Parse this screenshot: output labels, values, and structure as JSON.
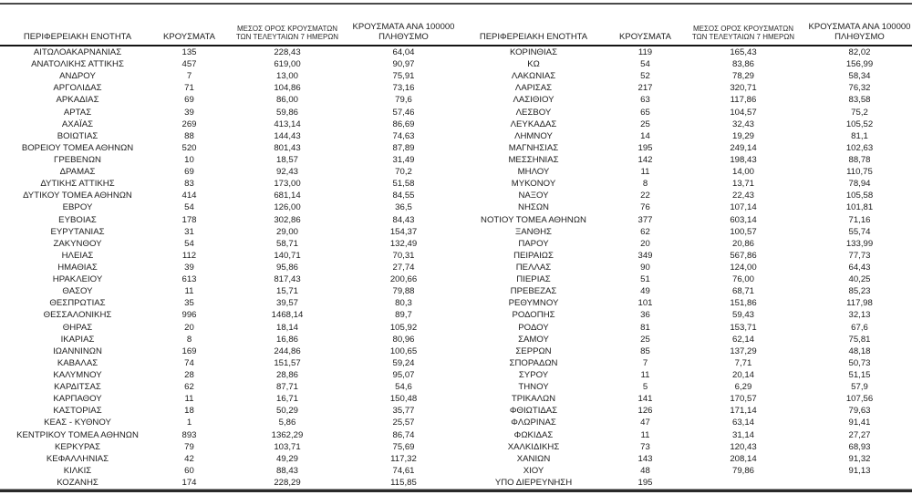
{
  "table": {
    "headers": [
      {
        "line1": "ΠΕΡΙΦΕΡΕΙΑΚΗ ΕΝΟΤΗΤΑ",
        "line2": ""
      },
      {
        "line1": "ΚΡΟΥΣΜΑΤΑ",
        "line2": ""
      },
      {
        "line1": "ΜΕΣΟΣ ΟΡΟΣ ΚΡΟΥΣΜΑΤΩΝ",
        "line2": "ΤΩΝ ΤΕΛΕΥΤΑΙΩΝ 7 ΗΜΕΡΩΝ"
      },
      {
        "line1": "ΚΡΟΥΣΜΑΤΑ ΑΝΑ 100000",
        "line2": "ΠΛΗΘΥΣΜΟ"
      }
    ],
    "left_rows": [
      [
        "ΑΙΤΩΛΟΑΚΑΡΝΑΝΙΑΣ",
        "135",
        "228,43",
        "64,04"
      ],
      [
        "ΑΝΑΤΟΛΙΚΗΣ ΑΤΤΙΚΗΣ",
        "457",
        "619,00",
        "90,97"
      ],
      [
        "ΑΝΔΡΟΥ",
        "7",
        "13,00",
        "75,91"
      ],
      [
        "ΑΡΓΟΛΙΔΑΣ",
        "71",
        "104,86",
        "73,16"
      ],
      [
        "ΑΡΚΑΔΙΑΣ",
        "69",
        "86,00",
        "79,6"
      ],
      [
        "ΑΡΤΑΣ",
        "39",
        "59,86",
        "57,46"
      ],
      [
        "ΑΧΑΪΑΣ",
        "269",
        "413,14",
        "86,69"
      ],
      [
        "ΒΟΙΩΤΙΑΣ",
        "88",
        "144,43",
        "74,63"
      ],
      [
        "ΒΟΡΕΙΟΥ ΤΟΜΕΑ ΑΘΗΝΩΝ",
        "520",
        "801,43",
        "87,89"
      ],
      [
        "ΓΡΕΒΕΝΩΝ",
        "10",
        "18,57",
        "31,49"
      ],
      [
        "ΔΡΑΜΑΣ",
        "69",
        "92,43",
        "70,2"
      ],
      [
        "ΔΥΤΙΚΗΣ ΑΤΤΙΚΗΣ",
        "83",
        "173,00",
        "51,58"
      ],
      [
        "ΔΥΤΙΚΟΥ ΤΟΜΕΑ ΑΘΗΝΩΝ",
        "414",
        "681,14",
        "84,55"
      ],
      [
        "ΕΒΡΟΥ",
        "54",
        "126,00",
        "36,5"
      ],
      [
        "ΕΥΒΟΙΑΣ",
        "178",
        "302,86",
        "84,43"
      ],
      [
        "ΕΥΡΥΤΑΝΙΑΣ",
        "31",
        "29,00",
        "154,37"
      ],
      [
        "ΖΑΚΥΝΘΟΥ",
        "54",
        "58,71",
        "132,49"
      ],
      [
        "ΗΛΕΙΑΣ",
        "112",
        "140,71",
        "70,31"
      ],
      [
        "ΗΜΑΘΙΑΣ",
        "39",
        "95,86",
        "27,74"
      ],
      [
        "ΗΡΑΚΛΕΙΟΥ",
        "613",
        "817,43",
        "200,66"
      ],
      [
        "ΘΑΣΟΥ",
        "11",
        "15,71",
        "79,88"
      ],
      [
        "ΘΕΣΠΡΩΤΙΑΣ",
        "35",
        "39,57",
        "80,3"
      ],
      [
        "ΘΕΣΣΑΛΟΝΙΚΗΣ",
        "996",
        "1468,14",
        "89,7"
      ],
      [
        "ΘΗΡΑΣ",
        "20",
        "18,14",
        "105,92"
      ],
      [
        "ΙΚΑΡΙΑΣ",
        "8",
        "16,86",
        "80,96"
      ],
      [
        "ΙΩΑΝΝΙΝΩΝ",
        "169",
        "244,86",
        "100,65"
      ],
      [
        "ΚΑΒΑΛΑΣ",
        "74",
        "151,57",
        "59,24"
      ],
      [
        "ΚΑΛΥΜΝΟΥ",
        "28",
        "28,86",
        "95,07"
      ],
      [
        "ΚΑΡΔΙΤΣΑΣ",
        "62",
        "87,71",
        "54,6"
      ],
      [
        "ΚΑΡΠΑΘΟΥ",
        "11",
        "16,71",
        "150,48"
      ],
      [
        "ΚΑΣΤΟΡΙΑΣ",
        "18",
        "50,29",
        "35,77"
      ],
      [
        "ΚΕΑΣ - ΚΥΘΝΟΥ",
        "1",
        "5,86",
        "25,57"
      ],
      [
        "ΚΕΝΤΡΙΚΟΥ ΤΟΜΕΑ ΑΘΗΝΩΝ",
        "893",
        "1362,29",
        "86,74"
      ],
      [
        "ΚΕΡΚΥΡΑΣ",
        "79",
        "103,71",
        "75,69"
      ],
      [
        "ΚΕΦΑΛΛΗΝΙΑΣ",
        "42",
        "49,29",
        "117,32"
      ],
      [
        "ΚΙΛΚΙΣ",
        "60",
        "88,43",
        "74,61"
      ],
      [
        "ΚΟΖΑΝΗΣ",
        "174",
        "228,29",
        "115,85"
      ]
    ],
    "right_rows": [
      [
        "ΚΟΡΙΝΘΙΑΣ",
        "119",
        "165,43",
        "82,02"
      ],
      [
        "ΚΩ",
        "54",
        "83,86",
        "156,99"
      ],
      [
        "ΛΑΚΩΝΙΑΣ",
        "52",
        "78,29",
        "58,34"
      ],
      [
        "ΛΑΡΙΣΑΣ",
        "217",
        "320,71",
        "76,32"
      ],
      [
        "ΛΑΣΙΘΙΟΥ",
        "63",
        "117,86",
        "83,58"
      ],
      [
        "ΛΕΣΒΟΥ",
        "65",
        "104,57",
        "75,2"
      ],
      [
        "ΛΕΥΚΑΔΑΣ",
        "25",
        "32,43",
        "105,52"
      ],
      [
        "ΛΗΜΝΟΥ",
        "14",
        "19,29",
        "81,1"
      ],
      [
        "ΜΑΓΝΗΣΙΑΣ",
        "195",
        "249,14",
        "102,63"
      ],
      [
        "ΜΕΣΣΗΝΙΑΣ",
        "142",
        "198,43",
        "88,78"
      ],
      [
        "ΜΗΛΟΥ",
        "11",
        "14,00",
        "110,75"
      ],
      [
        "ΜΥΚΟΝΟΥ",
        "8",
        "13,71",
        "78,94"
      ],
      [
        "ΝΑΞΟΥ",
        "22",
        "22,43",
        "105,58"
      ],
      [
        "ΝΗΣΩΝ",
        "76",
        "107,14",
        "101,81"
      ],
      [
        "ΝΟΤΙΟΥ ΤΟΜΕΑ ΑΘΗΝΩΝ",
        "377",
        "603,14",
        "71,16"
      ],
      [
        "ΞΑΝΘΗΣ",
        "62",
        "100,57",
        "55,74"
      ],
      [
        "ΠΑΡΟΥ",
        "20",
        "20,86",
        "133,99"
      ],
      [
        "ΠΕΙΡΑΙΩΣ",
        "349",
        "567,86",
        "77,73"
      ],
      [
        "ΠΕΛΛΑΣ",
        "90",
        "124,00",
        "64,43"
      ],
      [
        "ΠΙΕΡΙΑΣ",
        "51",
        "76,00",
        "40,25"
      ],
      [
        "ΠΡΕΒΕΖΑΣ",
        "49",
        "68,71",
        "85,23"
      ],
      [
        "ΡΕΘΥΜΝΟΥ",
        "101",
        "151,86",
        "117,98"
      ],
      [
        "ΡΟΔΟΠΗΣ",
        "36",
        "59,43",
        "32,13"
      ],
      [
        "ΡΟΔΟΥ",
        "81",
        "153,71",
        "67,6"
      ],
      [
        "ΣΑΜΟΥ",
        "25",
        "62,14",
        "75,81"
      ],
      [
        "ΣΕΡΡΩΝ",
        "85",
        "137,29",
        "48,18"
      ],
      [
        "ΣΠΟΡΑΔΩΝ",
        "7",
        "7,71",
        "50,73"
      ],
      [
        "ΣΥΡΟΥ",
        "11",
        "20,14",
        "51,15"
      ],
      [
        "ΤΗΝΟΥ",
        "5",
        "6,29",
        "57,9"
      ],
      [
        "ΤΡΙΚΑΛΩΝ",
        "141",
        "170,57",
        "107,56"
      ],
      [
        "ΦΘΙΩΤΙΔΑΣ",
        "126",
        "171,14",
        "79,63"
      ],
      [
        "ΦΛΩΡΙΝΑΣ",
        "47",
        "63,14",
        "91,41"
      ],
      [
        "ΦΩΚΙΔΑΣ",
        "11",
        "31,14",
        "27,27"
      ],
      [
        "ΧΑΛΚΙΔΙΚΗΣ",
        "73",
        "120,43",
        "68,93"
      ],
      [
        "ΧΑΝΙΩΝ",
        "143",
        "208,14",
        "91,32"
      ],
      [
        "ΧΙΟΥ",
        "48",
        "79,86",
        "91,13"
      ],
      [
        "ΥΠΟ ΔΙΕΡΕΥΝΗΣΗ",
        "195",
        "",
        ""
      ]
    ],
    "column_names": [
      "region-name",
      "cases",
      "avg-7day",
      "per-100k"
    ]
  },
  "colors": {
    "text": "#1c1c1c",
    "rule_top": "#4a4a4a",
    "rule_header": "#141414",
    "rule_bottom": "#2a2a2a",
    "background": "#ffffff"
  }
}
